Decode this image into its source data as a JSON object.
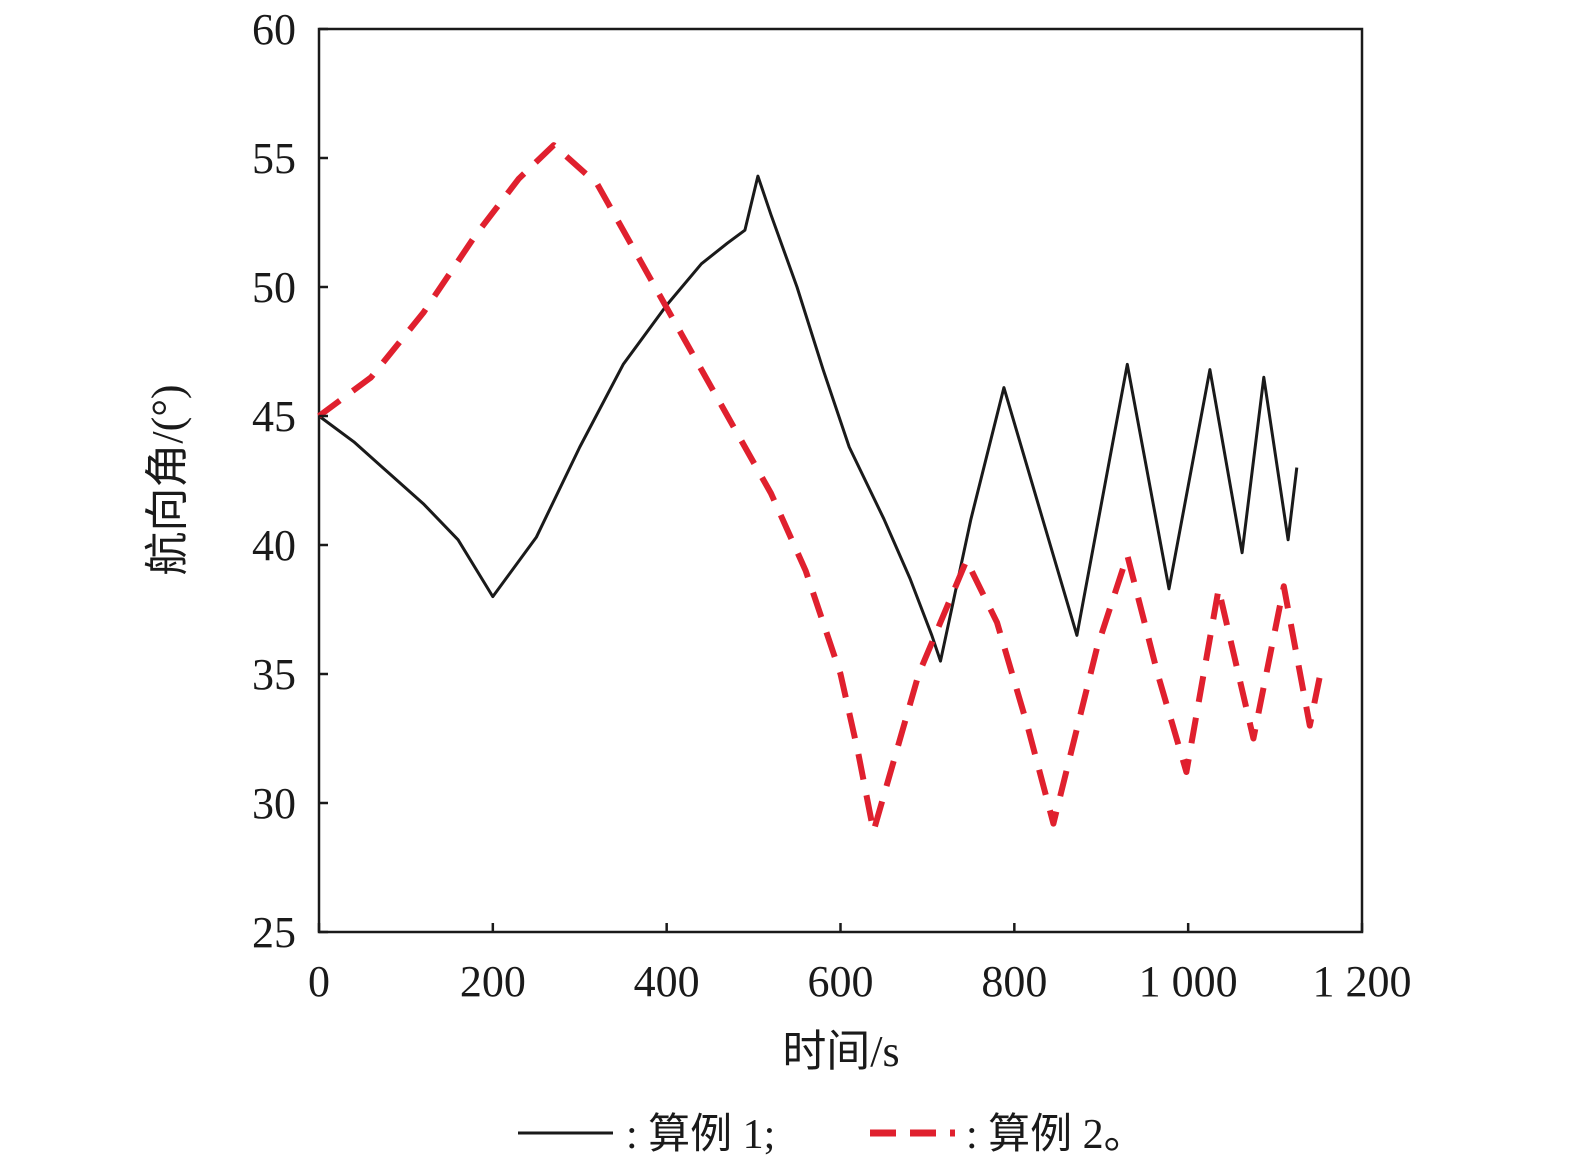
{
  "chart_data": {
    "type": "line",
    "title": "",
    "xlabel": "时间/s",
    "ylabel": "航向角/(°)",
    "xlim": [
      0,
      1200
    ],
    "ylim": [
      25,
      60
    ],
    "x_ticks": [
      0,
      200,
      400,
      600,
      800,
      1000,
      1200
    ],
    "x_tick_labels": [
      "0",
      "200",
      "400",
      "600",
      "800",
      "1 000",
      "1 200"
    ],
    "y_ticks": [
      25,
      30,
      35,
      40,
      45,
      50,
      55,
      60
    ],
    "y_tick_labels": [
      "25",
      "30",
      "35",
      "40",
      "45",
      "50",
      "55",
      "60"
    ],
    "grid": false,
    "legend_position": "bottom",
    "series": [
      {
        "name": "算例 1",
        "legend_label": ": 算例 1;",
        "color": "#1a1a1a",
        "style": "solid",
        "points": [
          [
            0,
            45.0
          ],
          [
            40,
            44.0
          ],
          [
            80,
            42.8
          ],
          [
            120,
            41.6
          ],
          [
            160,
            40.2
          ],
          [
            200,
            38.0
          ],
          [
            250,
            40.3
          ],
          [
            300,
            43.8
          ],
          [
            350,
            47.0
          ],
          [
            400,
            49.3
          ],
          [
            440,
            50.9
          ],
          [
            470,
            51.7
          ],
          [
            490,
            52.2
          ],
          [
            505,
            54.3
          ],
          [
            520,
            52.8
          ],
          [
            550,
            50.0
          ],
          [
            580,
            46.8
          ],
          [
            610,
            43.8
          ],
          [
            650,
            41.0
          ],
          [
            680,
            38.7
          ],
          [
            705,
            36.5
          ],
          [
            715,
            35.5
          ],
          [
            750,
            41.0
          ],
          [
            788,
            46.1
          ],
          [
            830,
            41.3
          ],
          [
            872,
            36.5
          ],
          [
            930,
            47.0
          ],
          [
            978,
            38.3
          ],
          [
            1025,
            46.8
          ],
          [
            1062,
            39.7
          ],
          [
            1087,
            46.5
          ],
          [
            1115,
            40.2
          ],
          [
            1125,
            43.0
          ]
        ]
      },
      {
        "name": "算例 2",
        "legend_label": ": 算例 2。",
        "color": "#e0202e",
        "style": "dashed",
        "points": [
          [
            0,
            45.0
          ],
          [
            60,
            46.5
          ],
          [
            120,
            49.0
          ],
          [
            180,
            52.0
          ],
          [
            230,
            54.2
          ],
          [
            270,
            55.5
          ],
          [
            320,
            54.0
          ],
          [
            370,
            51.0
          ],
          [
            420,
            48.0
          ],
          [
            470,
            45.0
          ],
          [
            520,
            42.0
          ],
          [
            560,
            39.0
          ],
          [
            600,
            35.0
          ],
          [
            620,
            32.0
          ],
          [
            638,
            28.9
          ],
          [
            690,
            35.0
          ],
          [
            745,
            39.4
          ],
          [
            780,
            37.0
          ],
          [
            815,
            33.0
          ],
          [
            845,
            29.2
          ],
          [
            895,
            36.0
          ],
          [
            930,
            39.6
          ],
          [
            965,
            35.0
          ],
          [
            998,
            31.2
          ],
          [
            1035,
            38.3
          ],
          [
            1075,
            32.5
          ],
          [
            1110,
            38.4
          ],
          [
            1140,
            33.0
          ],
          [
            1152,
            35.0
          ]
        ]
      }
    ]
  }
}
